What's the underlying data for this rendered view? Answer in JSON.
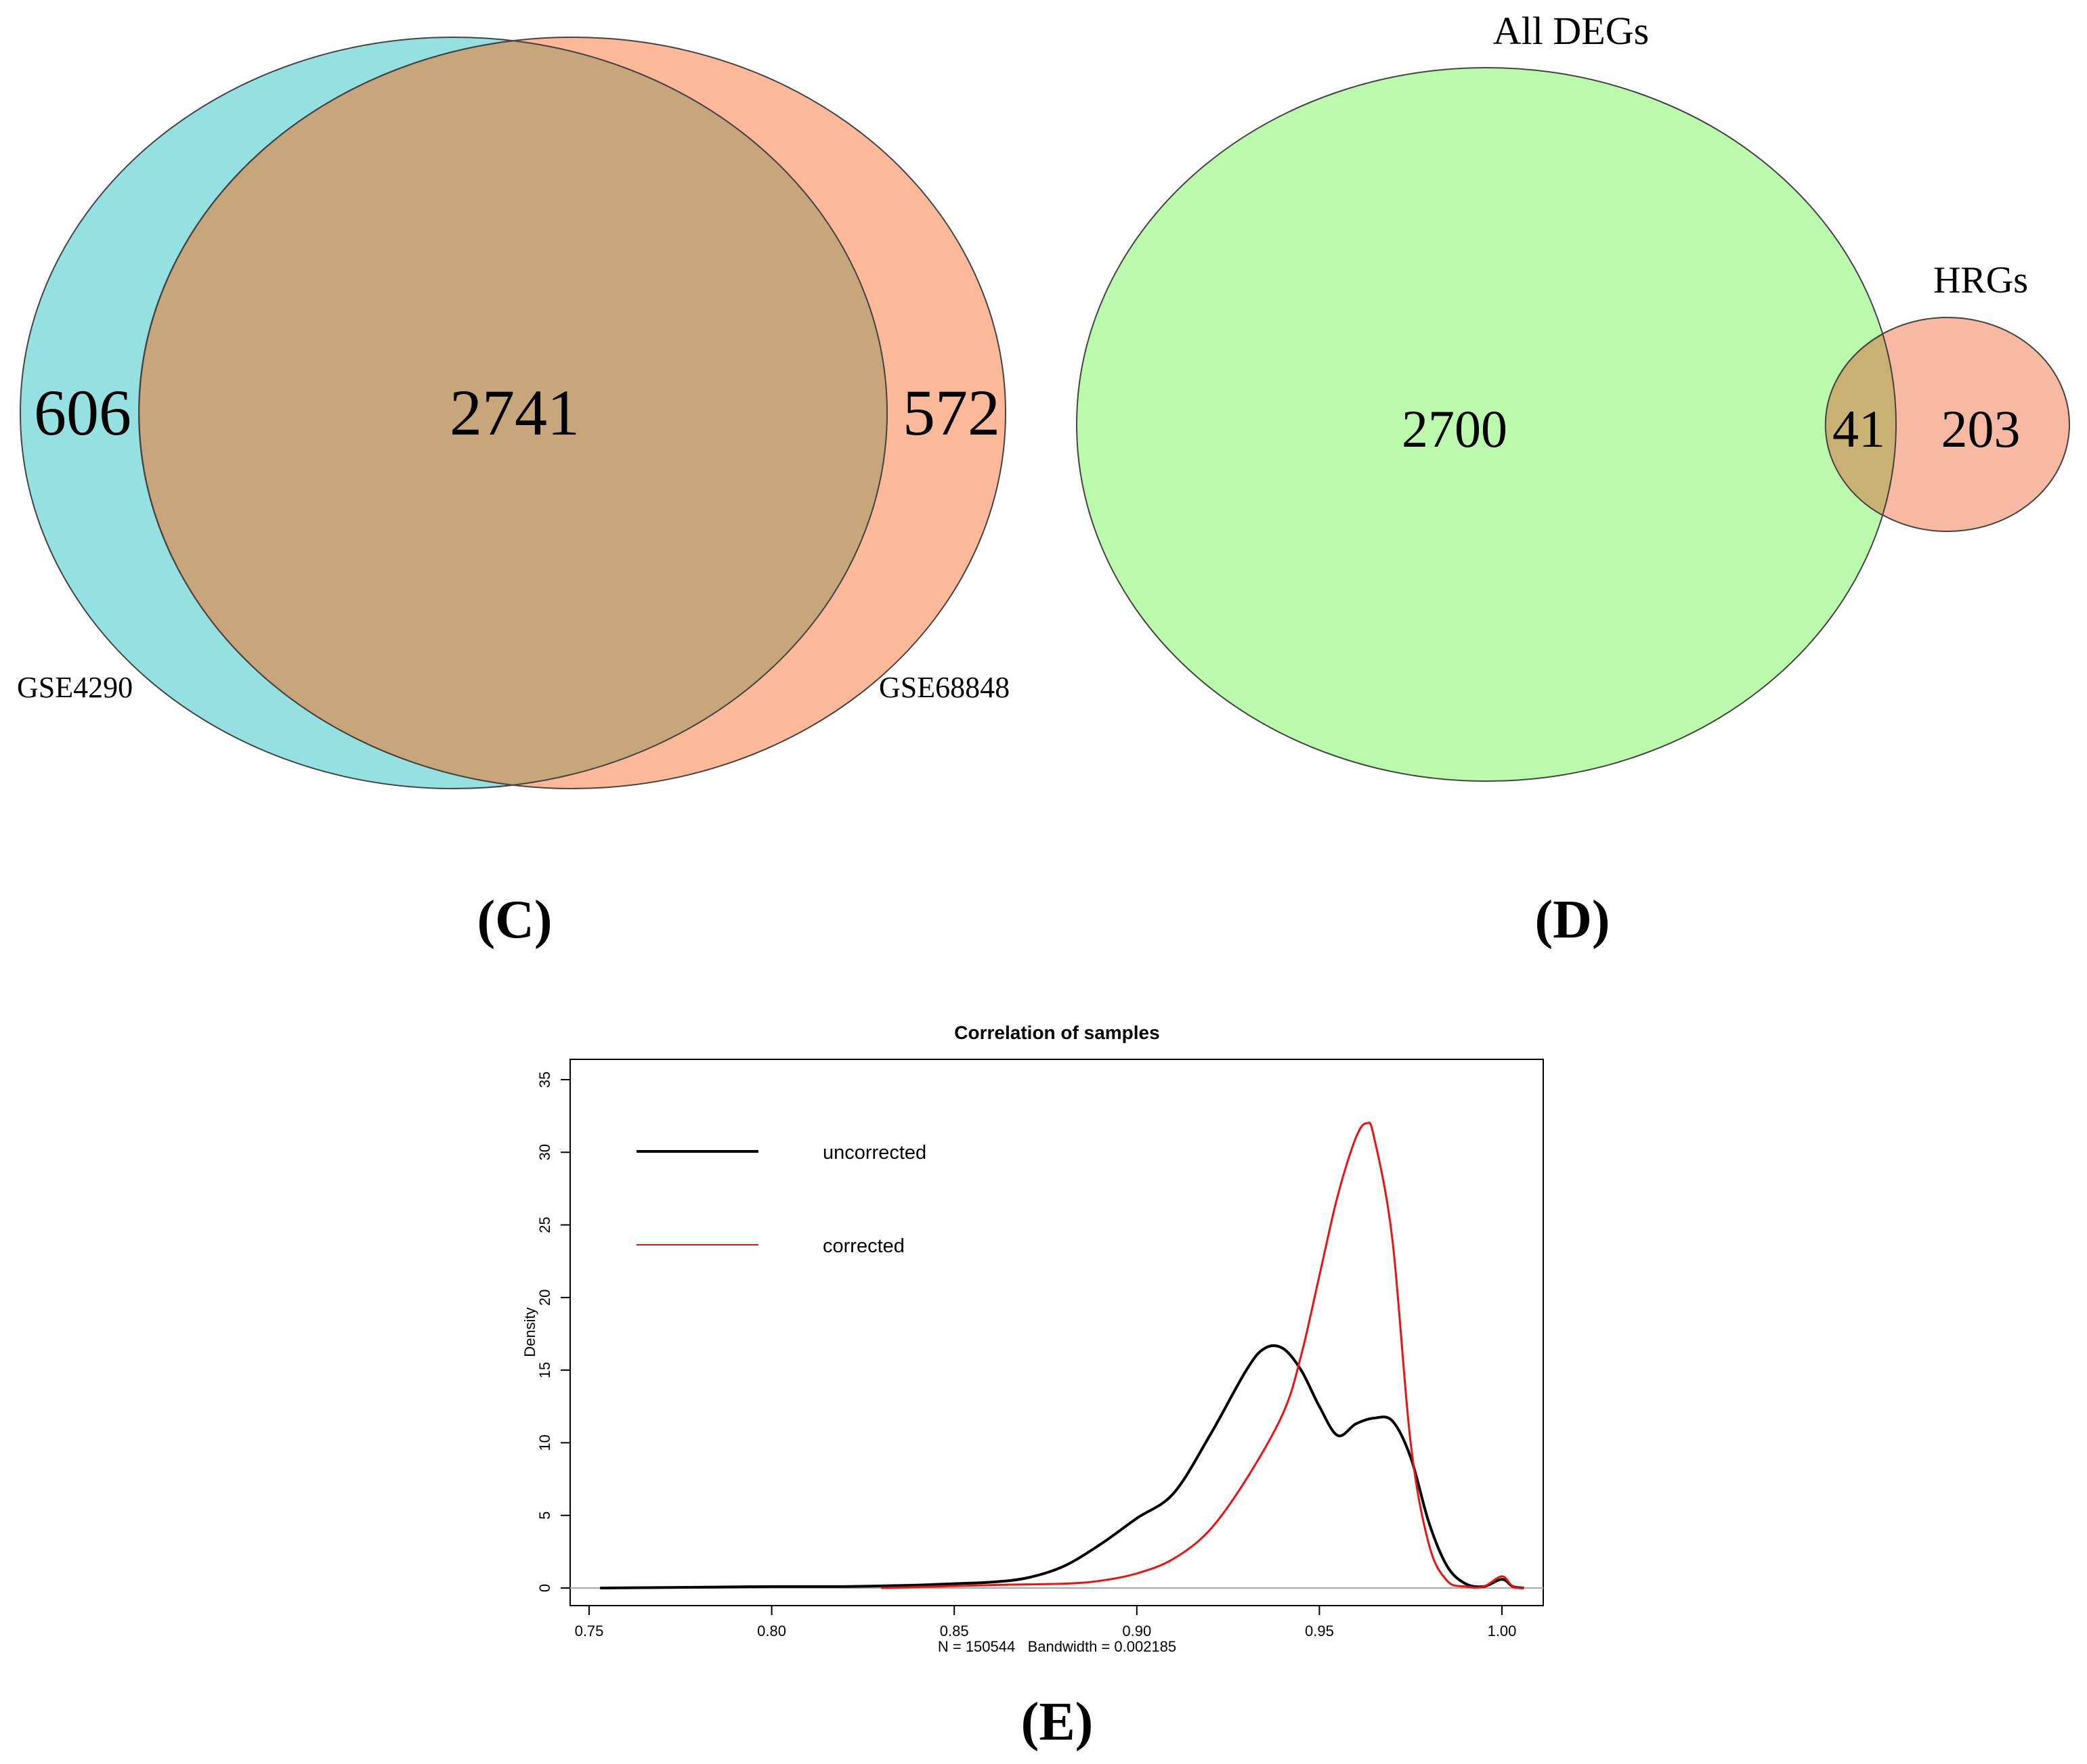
{
  "panels": {
    "c": {
      "label": "(C)"
    },
    "d": {
      "label": "(D)"
    },
    "e": {
      "label": "(E)"
    }
  },
  "chart_data": [
    {
      "type": "venn",
      "panel": "(C)",
      "sets": [
        {
          "name": "GSE4290",
          "color": "#3ec8c8",
          "only": 606
        },
        {
          "name": "GSE68848",
          "color": "#fa8a55",
          "only": 572
        }
      ],
      "intersection": 2741,
      "counts_text": {
        "left": "606",
        "center": "2741",
        "right": "572"
      }
    },
    {
      "type": "venn",
      "panel": "(D)",
      "sets": [
        {
          "name": "All DEGs",
          "color": "#78f55a",
          "only": 2700
        },
        {
          "name": "HRGs",
          "color": "#f28a62",
          "only": 203
        }
      ],
      "intersection": 41,
      "counts_text": {
        "left": "2700",
        "center": "41",
        "right": "203"
      }
    },
    {
      "type": "line",
      "panel": "(E)",
      "title": "Correlation of samples",
      "xlabel": "N = 150544   Bandwidth = 0.002185",
      "ylabel": "Density",
      "xlim": [
        0.75,
        1.0
      ],
      "ylim": [
        0,
        35
      ],
      "xticks": [
        "0.75",
        "0.80",
        "0.85",
        "0.90",
        "0.95",
        "1.00"
      ],
      "yticks": [
        "0",
        "5",
        "10",
        "15",
        "20",
        "25",
        "30",
        "35"
      ],
      "legend": {
        "position": "top-left",
        "entries": [
          "uncorrected",
          "corrected"
        ]
      },
      "series": [
        {
          "name": "uncorrected",
          "color": "#000000",
          "points": [
            [
              0.753,
              0
            ],
            [
              0.78,
              0.05
            ],
            [
              0.8,
              0.1
            ],
            [
              0.82,
              0.1
            ],
            [
              0.84,
              0.2
            ],
            [
              0.85,
              0.3
            ],
            [
              0.86,
              0.4
            ],
            [
              0.87,
              0.7
            ],
            [
              0.88,
              1.5
            ],
            [
              0.89,
              3.0
            ],
            [
              0.9,
              4.8
            ],
            [
              0.91,
              6.5
            ],
            [
              0.92,
              10.5
            ],
            [
              0.93,
              15.0
            ],
            [
              0.935,
              16.5
            ],
            [
              0.94,
              16.5
            ],
            [
              0.945,
              15.0
            ],
            [
              0.95,
              12.5
            ],
            [
              0.955,
              10.5
            ],
            [
              0.96,
              11.3
            ],
            [
              0.965,
              11.7
            ],
            [
              0.97,
              11.5
            ],
            [
              0.975,
              9.0
            ],
            [
              0.98,
              4.5
            ],
            [
              0.985,
              1.5
            ],
            [
              0.99,
              0.3
            ],
            [
              0.995,
              0.1
            ],
            [
              1.0,
              0.6
            ],
            [
              1.003,
              0.1
            ],
            [
              1.006,
              0
            ]
          ]
        },
        {
          "name": "corrected",
          "color": "#ee1111",
          "points": [
            [
              0.83,
              0
            ],
            [
              0.86,
              0.2
            ],
            [
              0.88,
              0.3
            ],
            [
              0.89,
              0.5
            ],
            [
              0.9,
              1.0
            ],
            [
              0.91,
              2.0
            ],
            [
              0.92,
              4.0
            ],
            [
              0.93,
              7.5
            ],
            [
              0.94,
              12.0
            ],
            [
              0.945,
              16.0
            ],
            [
              0.95,
              21.5
            ],
            [
              0.955,
              27.0
            ],
            [
              0.96,
              31.0
            ],
            [
              0.963,
              32.0
            ],
            [
              0.965,
              31.0
            ],
            [
              0.97,
              24.0
            ],
            [
              0.975,
              10.0
            ],
            [
              0.98,
              3.0
            ],
            [
              0.985,
              0.5
            ],
            [
              0.99,
              0.1
            ],
            [
              0.995,
              0.1
            ],
            [
              1.0,
              0.8
            ],
            [
              1.003,
              0.1
            ],
            [
              1.006,
              0
            ]
          ]
        }
      ]
    }
  ]
}
